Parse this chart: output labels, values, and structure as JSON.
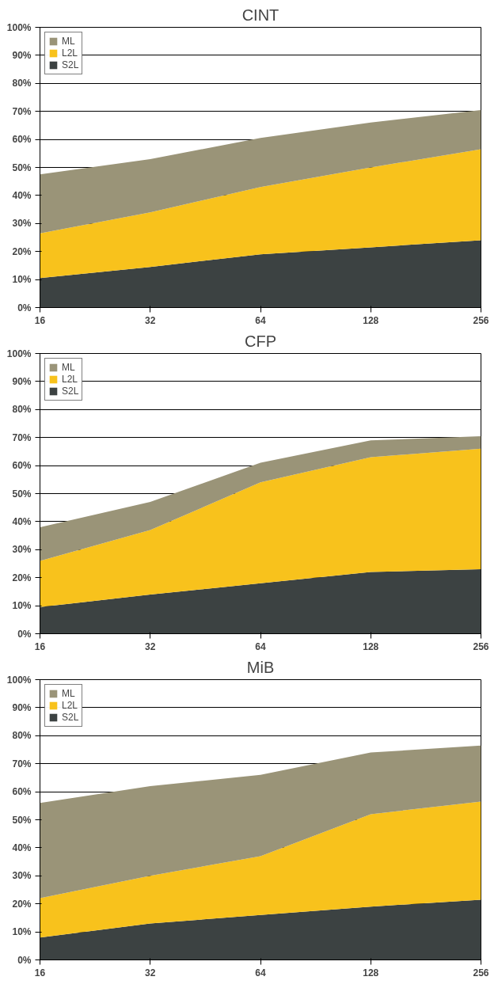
{
  "chart_data": [
    {
      "type": "area",
      "title": "CINT",
      "stacked": true,
      "categories": [
        "16",
        "32",
        "64",
        "128",
        "256"
      ],
      "ylim": [
        0,
        100
      ],
      "yticks": [
        {
          "value": 0,
          "label": "0%"
        },
        {
          "value": 10,
          "label": "10%"
        },
        {
          "value": 20,
          "label": "20%"
        },
        {
          "value": 30,
          "label": "30%"
        },
        {
          "value": 40,
          "label": "40%"
        },
        {
          "value": 50,
          "label": "50%"
        },
        {
          "value": 60,
          "label": "60%"
        },
        {
          "value": 70,
          "label": "70%"
        },
        {
          "value": 80,
          "label": "80%"
        },
        {
          "value": 90,
          "label": "90%"
        },
        {
          "value": 100,
          "label": "100%"
        }
      ],
      "grid": "y",
      "legend": "top left",
      "series": [
        {
          "name": "S2L",
          "color": "#3c4242",
          "values": [
            10.5,
            14.5,
            19,
            21.5,
            24
          ]
        },
        {
          "name": "L2L",
          "color": "#f8c21c",
          "values": [
            16,
            19.5,
            24,
            28.5,
            32.5
          ]
        },
        {
          "name": "ML",
          "color": "#9a9478",
          "values": [
            21,
            19,
            17.5,
            16,
            14
          ]
        }
      ]
    },
    {
      "type": "area",
      "title": "CFP",
      "stacked": true,
      "categories": [
        "16",
        "32",
        "64",
        "128",
        "256"
      ],
      "ylim": [
        0,
        100
      ],
      "yticks": [
        {
          "value": 0,
          "label": "0%"
        },
        {
          "value": 10,
          "label": "10%"
        },
        {
          "value": 20,
          "label": "20%"
        },
        {
          "value": 30,
          "label": "30%"
        },
        {
          "value": 40,
          "label": "40%"
        },
        {
          "value": 50,
          "label": "50%"
        },
        {
          "value": 60,
          "label": "60%"
        },
        {
          "value": 70,
          "label": "70%"
        },
        {
          "value": 80,
          "label": "80%"
        },
        {
          "value": 90,
          "label": "90%"
        },
        {
          "value": 100,
          "label": "100%"
        }
      ],
      "grid": "y",
      "legend": "top left",
      "series": [
        {
          "name": "S2L",
          "color": "#3c4242",
          "values": [
            9.5,
            14,
            18,
            22,
            23
          ]
        },
        {
          "name": "L2L",
          "color": "#f8c21c",
          "values": [
            16.5,
            23,
            36,
            41,
            43
          ]
        },
        {
          "name": "ML",
          "color": "#9a9478",
          "values": [
            12,
            10,
            7,
            6,
            4.5
          ]
        }
      ]
    },
    {
      "type": "area",
      "title": "MiB",
      "stacked": true,
      "categories": [
        "16",
        "32",
        "64",
        "128",
        "256"
      ],
      "ylim": [
        0,
        100
      ],
      "yticks": [
        {
          "value": 0,
          "label": "0%"
        },
        {
          "value": 10,
          "label": "10%"
        },
        {
          "value": 20,
          "label": "20%"
        },
        {
          "value": 30,
          "label": "30%"
        },
        {
          "value": 40,
          "label": "40%"
        },
        {
          "value": 50,
          "label": "50%"
        },
        {
          "value": 60,
          "label": "60%"
        },
        {
          "value": 70,
          "label": "70%"
        },
        {
          "value": 80,
          "label": "80%"
        },
        {
          "value": 90,
          "label": "90%"
        },
        {
          "value": 100,
          "label": "100%"
        }
      ],
      "grid": "y",
      "legend": "top left",
      "series": [
        {
          "name": "S2L",
          "color": "#3c4242",
          "values": [
            8,
            13,
            16,
            19,
            21.5
          ]
        },
        {
          "name": "L2L",
          "color": "#f8c21c",
          "values": [
            14,
            17,
            21,
            33,
            35
          ]
        },
        {
          "name": "ML",
          "color": "#9a9478",
          "values": [
            34,
            32,
            29,
            22,
            20
          ]
        }
      ]
    }
  ]
}
